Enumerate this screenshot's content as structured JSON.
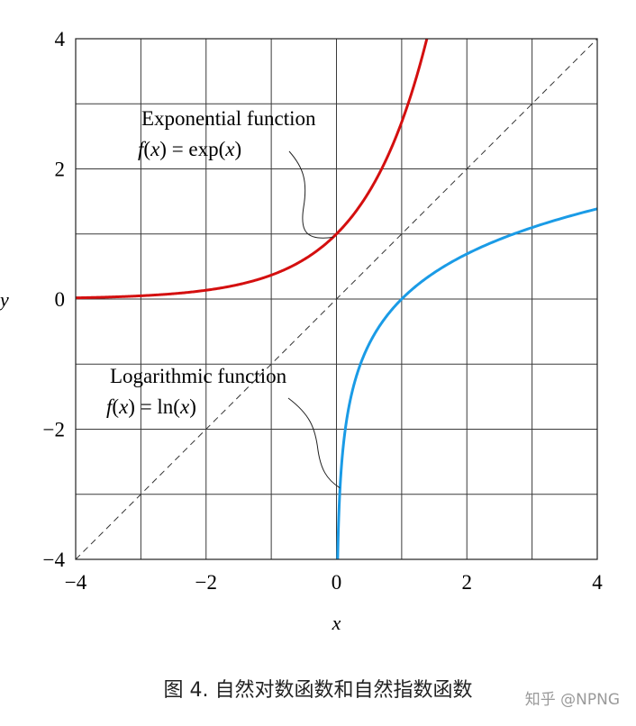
{
  "chart_data": {
    "type": "line",
    "title": "",
    "xlabel": "x",
    "ylabel": "y",
    "xlim": [
      -4,
      4
    ],
    "ylim": [
      -4,
      4
    ],
    "grid": true,
    "x_ticks": [
      -4,
      -2,
      0,
      2,
      4
    ],
    "y_ticks": [
      -4,
      -2,
      0,
      2,
      4
    ],
    "x_tick_labels": [
      "−4",
      "−2",
      "0",
      "2",
      "4"
    ],
    "y_tick_labels": [
      "−4",
      "−2",
      "0",
      "2",
      "4"
    ],
    "series": [
      {
        "name": "Exponential function",
        "formula": "f(x) = exp(x)",
        "color": "#d40f0f",
        "x": [
          -4,
          -3.5,
          -3,
          -2.5,
          -2,
          -1.5,
          -1,
          -0.5,
          0,
          0.25,
          0.5,
          0.75,
          1,
          1.1,
          1.2,
          1.3,
          1.386
        ],
        "y": [
          0.018,
          0.03,
          0.05,
          0.082,
          0.135,
          0.223,
          0.368,
          0.607,
          1.0,
          1.284,
          1.649,
          2.117,
          2.718,
          3.004,
          3.32,
          3.669,
          4.0
        ]
      },
      {
        "name": "Logarithmic function",
        "formula": "f(x) = ln(x)",
        "color": "#1a9be6",
        "x": [
          0.0183,
          0.025,
          0.035,
          0.05,
          0.07,
          0.1,
          0.15,
          0.2,
          0.3,
          0.4,
          0.5,
          0.6,
          0.8,
          1,
          1.5,
          2,
          2.5,
          3,
          3.5,
          4
        ],
        "y": [
          -4.0,
          -3.689,
          -3.352,
          -2.996,
          -2.659,
          -2.303,
          -1.897,
          -1.609,
          -1.204,
          -0.916,
          -0.693,
          -0.511,
          -0.223,
          0,
          0.405,
          0.693,
          0.916,
          1.099,
          1.253,
          1.386
        ]
      },
      {
        "name": "y = x",
        "style": "dashed",
        "color": "#333333",
        "x": [
          -4,
          4
        ],
        "y": [
          -4,
          4
        ]
      }
    ],
    "annotations": [
      {
        "line1": "Exponential function",
        "line2_parts": [
          "f",
          "(",
          "x",
          ") = exp(",
          "x",
          ")"
        ],
        "points_to": [
          -0.05,
          0.95
        ]
      },
      {
        "line1": "Logarithmic function",
        "line2_parts": [
          "f",
          "(",
          "x",
          ") = ln(",
          "x",
          ")"
        ],
        "points_to": [
          0.05,
          -2.9
        ]
      }
    ]
  },
  "caption": "图 4. 自然对数函数和自然指数函数",
  "watermark": "知乎 @NPNG"
}
